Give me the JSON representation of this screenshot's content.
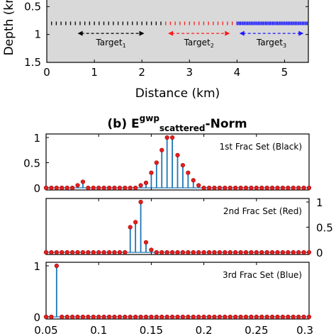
{
  "colors": {
    "panel_bg": "#d9d9d9",
    "stem": "#1f77b4",
    "marker_fill": "#e32020",
    "marker_edge": "#a00000",
    "frac_black": "#000000",
    "frac_red": "#ff1a1a",
    "frac_blue": "#1a1aff",
    "axis": "#000000"
  },
  "panel_a": {
    "ylabel": "Depth (km)",
    "xlabel": "Distance (km)",
    "xlim": [
      0,
      5.5
    ],
    "ylim": [
      0,
      1.5
    ],
    "y_reversed": true,
    "xticks": [
      "0",
      "1",
      "2",
      "3",
      "4",
      "5"
    ],
    "yticks": [
      "0.5",
      "1",
      "1.5"
    ],
    "fracture_depth": 0.8,
    "fracture_sets": [
      {
        "color_key": "frac_black",
        "x_start": 0.0,
        "x_end": 2.45,
        "spacing": 0.1
      },
      {
        "color_key": "frac_red",
        "x_start": 2.5,
        "x_end": 4.0,
        "spacing": 0.1
      },
      {
        "color_key": "frac_blue",
        "x_start": 4.0,
        "x_end": 5.5,
        "spacing": 0.025
      }
    ],
    "targets": [
      {
        "label": "Target",
        "sub": "1",
        "color_key": "frac_black",
        "x_start": 0.65,
        "x_end": 2.05,
        "y": 0.98
      },
      {
        "label": "Target",
        "sub": "2",
        "color_key": "frac_red",
        "x_start": 2.55,
        "x_end": 3.85,
        "y": 0.98
      },
      {
        "label": "Target",
        "sub": "3",
        "color_key": "frac_blue",
        "x_start": 4.05,
        "x_end": 5.4,
        "y": 0.98
      }
    ]
  },
  "panel_b": {
    "title_prefix": "(b) E",
    "title_sup": "gwp",
    "title_sub": "scattered",
    "title_suffix": "-Norm",
    "xticks": [
      "0.05",
      "0.1",
      "0.15",
      "0.2",
      "0.25",
      "0.3"
    ]
  },
  "chart_data": [
    {
      "type": "stem",
      "label": "1st Frac Set (Black)",
      "xlim": [
        0.05,
        0.3
      ],
      "ylim": [
        0,
        1
      ],
      "yticks": [
        "0",
        "0.5",
        "1"
      ],
      "ytick_side": "left",
      "x": [
        0.05,
        0.055,
        0.06,
        0.065,
        0.07,
        0.075,
        0.08,
        0.085,
        0.09,
        0.095,
        0.1,
        0.105,
        0.11,
        0.115,
        0.12,
        0.125,
        0.13,
        0.135,
        0.14,
        0.145,
        0.15,
        0.155,
        0.16,
        0.165,
        0.17,
        0.175,
        0.18,
        0.185,
        0.19,
        0.195,
        0.2,
        0.205,
        0.21,
        0.215,
        0.22,
        0.225,
        0.23,
        0.235,
        0.24,
        0.245,
        0.25,
        0.255,
        0.26,
        0.265,
        0.27,
        0.275,
        0.28,
        0.285,
        0.29,
        0.295,
        0.3
      ],
      "y": [
        0,
        0,
        0,
        0,
        0,
        0,
        0.05,
        0.12,
        0,
        0,
        0,
        0,
        0,
        0,
        0,
        0,
        0,
        0,
        0.05,
        0.1,
        0.3,
        0.5,
        0.75,
        1.0,
        1.0,
        0.65,
        0.45,
        0.3,
        0.15,
        0.05,
        0,
        0,
        0,
        0,
        0,
        0,
        0,
        0,
        0,
        0,
        0,
        0,
        0,
        0,
        0,
        0,
        0,
        0,
        0,
        0,
        0
      ]
    },
    {
      "type": "stem",
      "label": "2nd Frac Set (Red)",
      "xlim": [
        0.05,
        0.3
      ],
      "ylim": [
        0,
        1
      ],
      "yticks": [
        "0",
        "0.5",
        "1"
      ],
      "ytick_side": "right",
      "x": [
        0.05,
        0.055,
        0.06,
        0.065,
        0.07,
        0.075,
        0.08,
        0.085,
        0.09,
        0.095,
        0.1,
        0.105,
        0.11,
        0.115,
        0.12,
        0.125,
        0.13,
        0.135,
        0.14,
        0.145,
        0.15,
        0.155,
        0.16,
        0.165,
        0.17,
        0.175,
        0.18,
        0.185,
        0.19,
        0.195,
        0.2,
        0.205,
        0.21,
        0.215,
        0.22,
        0.225,
        0.23,
        0.235,
        0.24,
        0.245,
        0.25,
        0.255,
        0.26,
        0.265,
        0.27,
        0.275,
        0.28,
        0.285,
        0.29,
        0.295,
        0.3
      ],
      "y": [
        0,
        0,
        0,
        0,
        0,
        0,
        0,
        0,
        0,
        0,
        0,
        0,
        0,
        0,
        0,
        0,
        0.5,
        0.6,
        1.0,
        0.2,
        0.05,
        0,
        0,
        0,
        0,
        0,
        0,
        0,
        0,
        0,
        0,
        0,
        0,
        0,
        0,
        0,
        0,
        0,
        0,
        0,
        0,
        0,
        0,
        0,
        0,
        0,
        0,
        0,
        0,
        0,
        0
      ]
    },
    {
      "type": "stem",
      "label": "3rd Frac Set (Blue)",
      "xlim": [
        0.05,
        0.3
      ],
      "ylim": [
        0,
        1
      ],
      "yticks": [
        "0",
        "1"
      ],
      "ytick_side": "left",
      "x": [
        0.05,
        0.055,
        0.06,
        0.065,
        0.07,
        0.075,
        0.08,
        0.085,
        0.09,
        0.095,
        0.1,
        0.105,
        0.11,
        0.115,
        0.12,
        0.125,
        0.13,
        0.135,
        0.14,
        0.145,
        0.15,
        0.155,
        0.16,
        0.165,
        0.17,
        0.175,
        0.18,
        0.185,
        0.19,
        0.195,
        0.2,
        0.205,
        0.21,
        0.215,
        0.22,
        0.225,
        0.23,
        0.235,
        0.24,
        0.245,
        0.25,
        0.255,
        0.26,
        0.265,
        0.27,
        0.275,
        0.28,
        0.285,
        0.29,
        0.295,
        0.3
      ],
      "y": [
        0,
        0,
        1.0,
        0,
        0,
        0,
        0,
        0,
        0,
        0,
        0,
        0,
        0,
        0,
        0,
        0,
        0,
        0,
        0,
        0,
        0,
        0,
        0,
        0,
        0,
        0,
        0,
        0,
        0,
        0,
        0,
        0,
        0,
        0,
        0,
        0,
        0,
        0,
        0,
        0,
        0,
        0,
        0,
        0,
        0,
        0,
        0,
        0,
        0,
        0,
        0
      ]
    }
  ]
}
